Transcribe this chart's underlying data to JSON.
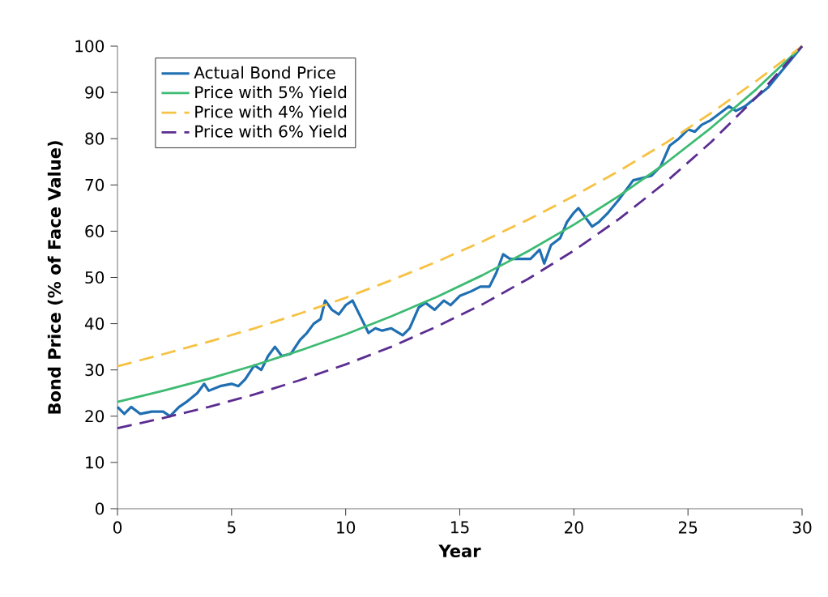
{
  "chart_data": {
    "type": "line",
    "xlabel": "Year",
    "ylabel": "Bond Price (% of Face Value)",
    "xlim": [
      0,
      30
    ],
    "ylim": [
      0,
      100
    ],
    "xticks": [
      0,
      5,
      10,
      15,
      20,
      25,
      30
    ],
    "yticks": [
      0,
      10,
      20,
      30,
      40,
      50,
      60,
      70,
      80,
      90,
      100
    ],
    "grid": false,
    "legend": "top left",
    "marker": "none",
    "series": [
      {
        "name": "Actual Bond Price",
        "color": "#1f6fb2",
        "line_style": "solid",
        "x": [
          0,
          0.3,
          0.6,
          1,
          1.5,
          2,
          2.3,
          2.7,
          3,
          3.5,
          3.8,
          4,
          4.5,
          5,
          5.3,
          5.6,
          6,
          6.3,
          6.6,
          6.9,
          7.2,
          7.6,
          8,
          8.3,
          8.6,
          8.9,
          9.1,
          9.4,
          9.7,
          10,
          10.3,
          10.6,
          11,
          11.3,
          11.6,
          12,
          12.5,
          12.8,
          13.2,
          13.5,
          13.9,
          14.3,
          14.6,
          15,
          15.5,
          15.9,
          16.3,
          16.6,
          16.9,
          17.2,
          17.7,
          18.1,
          18.5,
          18.7,
          19,
          19.4,
          19.7,
          20,
          20.2,
          20.5,
          20.8,
          21.1,
          21.5,
          22,
          22.3,
          22.6,
          23,
          23.4,
          23.8,
          24.2,
          24.6,
          25,
          25.3,
          25.6,
          26,
          26.4,
          26.8,
          27.1,
          27.5,
          28,
          28.5,
          29,
          29.5,
          30
        ],
        "values": [
          22,
          20.5,
          22,
          20.5,
          21,
          21,
          20,
          22,
          23,
          25,
          27,
          25.5,
          26.5,
          27,
          26.5,
          28,
          31,
          30,
          33,
          35,
          33,
          33.5,
          36.5,
          38,
          40,
          41,
          45,
          43,
          42,
          44,
          45,
          42,
          38,
          39,
          38.5,
          39,
          37.5,
          39,
          43.5,
          44.5,
          43,
          45,
          44,
          46,
          47,
          48,
          48,
          51,
          55,
          54,
          54,
          54,
          56,
          53,
          57,
          58.5,
          62,
          64,
          65,
          63,
          61,
          62,
          64,
          67,
          69,
          71,
          71.5,
          72,
          74,
          78.5,
          80,
          82,
          81.5,
          83,
          84,
          85.5,
          87,
          86,
          87,
          89,
          91,
          94,
          97,
          100
        ]
      },
      {
        "name": "Price with 5% Yield",
        "color": "#3dbb72",
        "line_style": "solid",
        "x": [
          0,
          2,
          4,
          6,
          8,
          10,
          12,
          14,
          16,
          18,
          20,
          22,
          24,
          26,
          28,
          30
        ],
        "values": [
          23.1,
          25.5,
          28.1,
          31.0,
          34.2,
          37.7,
          41.6,
          45.8,
          50.5,
          55.7,
          61.4,
          67.7,
          74.6,
          82.3,
          90.7,
          100
        ]
      },
      {
        "name": "Price with 4% Yield",
        "color": "#f6c244",
        "line_style": "dashed",
        "x": [
          0,
          2,
          4,
          6,
          8,
          10,
          12,
          14,
          16,
          18,
          20,
          22,
          24,
          26,
          28,
          30
        ],
        "values": [
          30.8,
          33.4,
          36.1,
          39.0,
          42.2,
          45.6,
          49.4,
          53.4,
          57.8,
          62.5,
          67.6,
          73.1,
          79.0,
          85.5,
          92.5,
          100
        ]
      },
      {
        "name": "Price with 6% Yield",
        "color": "#5b2d91",
        "line_style": "dashed",
        "x": [
          0,
          2,
          4,
          6,
          8,
          10,
          12,
          14,
          16,
          18,
          20,
          22,
          24,
          26,
          28,
          30
        ],
        "values": [
          17.4,
          19.6,
          22.0,
          24.7,
          27.8,
          31.2,
          35.0,
          39.4,
          44.2,
          49.7,
          55.8,
          62.7,
          70.5,
          79.2,
          89.0,
          100
        ]
      }
    ]
  }
}
